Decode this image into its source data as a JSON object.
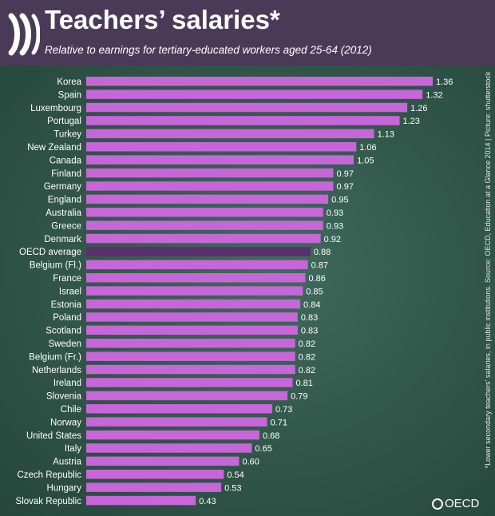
{
  "header": {
    "title": "Teachers’ salaries*",
    "subtitle": "Relative to earnings for tertiary-educated workers aged 25-64 (2012)"
  },
  "source_note": "*Lower secondary teachers' salaries, in public institutions.  Source: OECD, Education at a Glance 2014 | Picture: shutterstock",
  "logo": {
    "label": "OECD",
    "icon": "oecd-globe-icon"
  },
  "colors": {
    "header_bg": "#4b3a57",
    "bar": "#c766d8",
    "bar_highlight": "#5b2e6e",
    "label": "#ffffff"
  },
  "chart_data": {
    "type": "bar",
    "orientation": "horizontal",
    "categories": [
      "Korea",
      "Spain",
      "Luxembourg",
      "Portugal",
      "Turkey",
      "New Zealand",
      "Canada",
      "Finland",
      "Germany",
      "England",
      "Australia",
      "Greece",
      "Denmark",
      "OECD average",
      "Belgium (Fl.)",
      "France",
      "Israel",
      "Estonia",
      "Poland",
      "Scotland",
      "Sweden",
      "Belgium (Fr.)",
      "Netherlands",
      "Ireland",
      "Slovenia",
      "Chile",
      "Norway",
      "United States",
      "Italy",
      "Austria",
      "Czech Republic",
      "Hungary",
      "Slovak Republic"
    ],
    "values": [
      1.36,
      1.32,
      1.26,
      1.23,
      1.13,
      1.06,
      1.05,
      0.97,
      0.97,
      0.95,
      0.93,
      0.93,
      0.92,
      0.88,
      0.87,
      0.86,
      0.85,
      0.84,
      0.83,
      0.83,
      0.82,
      0.82,
      0.82,
      0.81,
      0.79,
      0.73,
      0.71,
      0.68,
      0.65,
      0.6,
      0.54,
      0.53,
      0.43
    ],
    "value_labels": [
      "1.36",
      "1.32",
      "1.26",
      "1.23",
      "1.13",
      "1.06",
      "1.05",
      "0.97",
      "0.97",
      "0.95",
      "0.93",
      "0.93",
      "0.92",
      "0.88",
      "0.87",
      "0.86",
      "0.85",
      "0.84",
      "0.83",
      "0.83",
      "0.82",
      "0.82",
      "0.82",
      "0.81",
      "0.79",
      "0.73",
      "0.71",
      "0.68",
      "0.65",
      "0.60",
      "0.54",
      "0.53",
      "0.43"
    ],
    "highlight": "OECD average",
    "xlim": [
      0,
      1.36
    ],
    "grid": false,
    "legend": "none"
  }
}
